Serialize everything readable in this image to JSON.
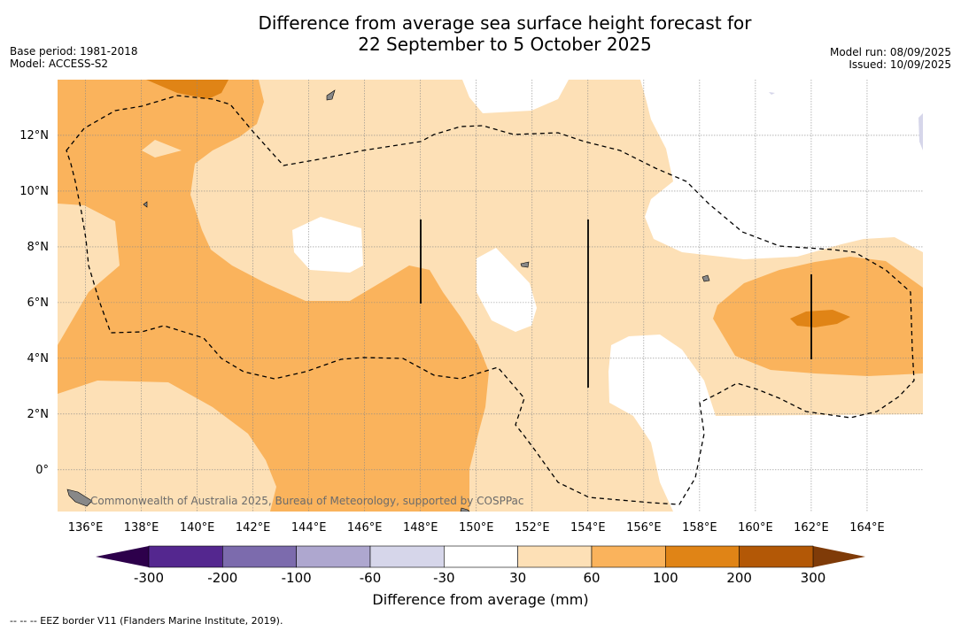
{
  "title_line1": "Difference from average sea surface height forecast for",
  "title_line2": "22 September to 5 October 2025",
  "base_period": "Base period: 1981-2018",
  "model": "Model: ACCESS-S2",
  "model_run": "Model run: 08/09/2025",
  "issued": "Issued: 10/09/2025",
  "credit": "Commonwealth of Australia 2025, Bureau of Meteorology, supported by COSPPac",
  "footer": "--  --  -- EEZ border V11 (Flanders Marine Institute, 2019).",
  "colorbar": {
    "label": "Difference from average (mm)",
    "ticks": [
      "-300",
      "-200",
      "-100",
      "-60",
      "-30",
      "30",
      "60",
      "100",
      "200",
      "300"
    ],
    "colors": [
      "#54278f",
      "#7c6bad",
      "#aea7cf",
      "#d6d6ea",
      "#ffffff",
      "#fde0b6",
      "#fab35c",
      "#e08416",
      "#b35806"
    ],
    "under_color": "#2d004b",
    "over_color": "#7f3b08"
  },
  "map": {
    "lon_range": [
      135,
      166
    ],
    "lat_range": [
      -1.5,
      14
    ],
    "lon_ticks": [
      "136°E",
      "138°E",
      "140°E",
      "142°E",
      "144°E",
      "146°E",
      "148°E",
      "150°E",
      "152°E",
      "154°E",
      "156°E",
      "158°E",
      "160°E",
      "162°E",
      "164°E"
    ],
    "lat_ticks": [
      "12°N",
      "10°N",
      "8°N",
      "6°N",
      "4°N",
      "2°N",
      "0°"
    ]
  }
}
